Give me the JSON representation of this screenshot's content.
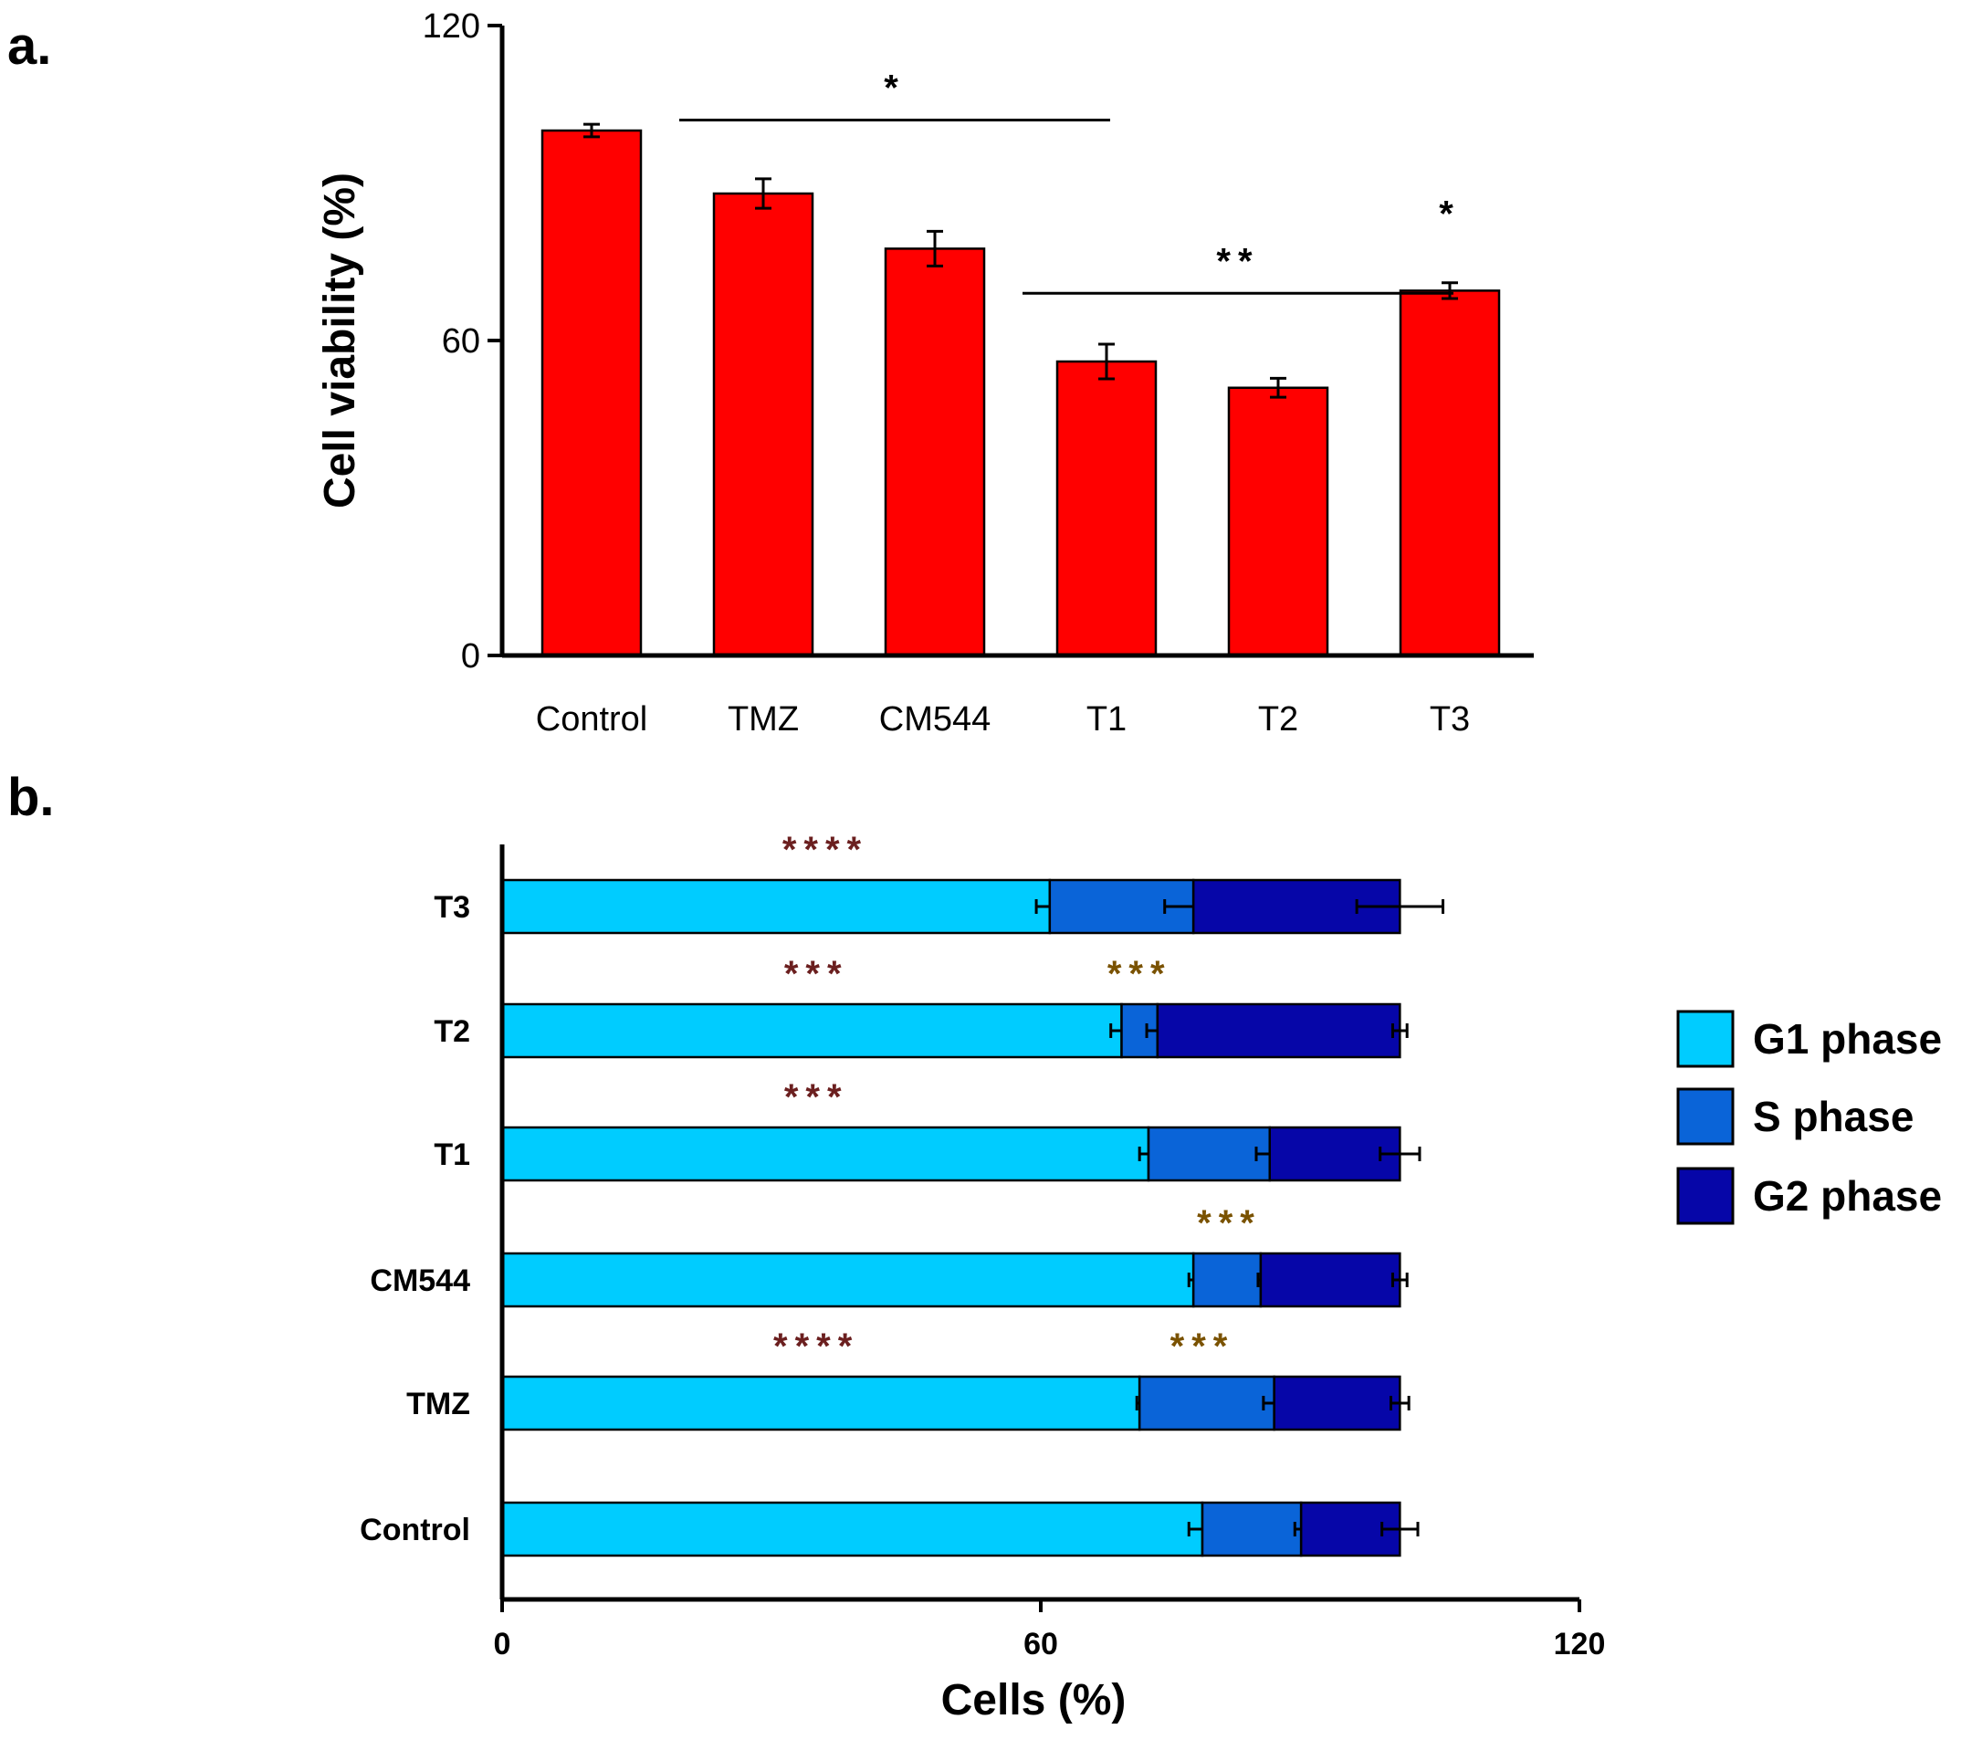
{
  "panels": {
    "a": "a.",
    "b": "b."
  },
  "colors": {
    "bar_a": "#ff0000",
    "g1": "#00ccff",
    "s": "#0a64d8",
    "g2": "#0606a8",
    "sig_a": "#000000",
    "sig_left": "#6b1f1f",
    "sig_right": "#7a5200"
  },
  "legend": [
    {
      "label": "G1 phase",
      "color": "#00ccff"
    },
    {
      "label": "S phase",
      "color": "#0a64d8"
    },
    {
      "label": "G2 phase",
      "color": "#0606a8"
    }
  ],
  "chart_data": [
    {
      "type": "bar",
      "panel": "a.",
      "categories": [
        "Control",
        "TMZ",
        "CM544",
        "T1",
        "T2",
        "T3"
      ],
      "values": [
        100,
        88,
        77.5,
        56,
        51,
        69.5
      ],
      "errors": [
        1.2,
        2.8,
        3.3,
        3.3,
        1.8,
        1.5
      ],
      "ylabel": "Cell viability (%)",
      "xlabel": "",
      "ylim": [
        0,
        120
      ],
      "yticks": [
        0,
        60,
        120
      ],
      "significance": [
        {
          "text": "*",
          "from": "TMZ",
          "to": "CM544",
          "y": 102,
          "bracket": true
        },
        {
          "text": "**",
          "from": "T1",
          "to": "T2",
          "y": 69,
          "bracket": true
        },
        {
          "text": "*",
          "from": "T3",
          "to": "T3",
          "y": 78,
          "bracket": false
        }
      ]
    },
    {
      "type": "bar",
      "orientation": "horizontal",
      "stacked": true,
      "panel": "b.",
      "categories": [
        "Control",
        "TMZ",
        "CM544",
        "T1",
        "T2",
        "T3"
      ],
      "series": [
        {
          "name": "G1 phase",
          "values": [
            78,
            71,
            77,
            72,
            69,
            61
          ],
          "errors": [
            1.5,
            0.3,
            0.5,
            1.0,
            1.2,
            1.5
          ]
        },
        {
          "name": "S phase",
          "values": [
            11,
            15,
            7.5,
            13.5,
            4,
            16
          ],
          "errors": [
            0.7,
            1.2,
            0.3,
            1.5,
            1.2,
            3.2
          ]
        },
        {
          "name": "G2 phase",
          "values": [
            11,
            14,
            15.5,
            14.5,
            27,
            23
          ],
          "errors": [
            2.0,
            1.0,
            0.8,
            2.2,
            0.8,
            4.8
          ]
        }
      ],
      "xlabel": "Cells (%)",
      "ylabel": "",
      "xlim": [
        0,
        120
      ],
      "xticks": [
        0,
        60,
        120
      ],
      "significance": [
        {
          "category": "T3",
          "text": "****",
          "x": 36,
          "color": "sig_left"
        },
        {
          "category": "T2",
          "text": "***",
          "x": 35,
          "color": "sig_left"
        },
        {
          "category": "T2",
          "text": "***",
          "x": 71,
          "color": "sig_right"
        },
        {
          "category": "T1",
          "text": "***",
          "x": 35,
          "color": "sig_left"
        },
        {
          "category": "CM544",
          "text": "***",
          "x": 81,
          "color": "sig_right"
        },
        {
          "category": "TMZ",
          "text": "****",
          "x": 35,
          "color": "sig_left"
        },
        {
          "category": "TMZ",
          "text": "***",
          "x": 78,
          "color": "sig_right"
        }
      ]
    }
  ]
}
